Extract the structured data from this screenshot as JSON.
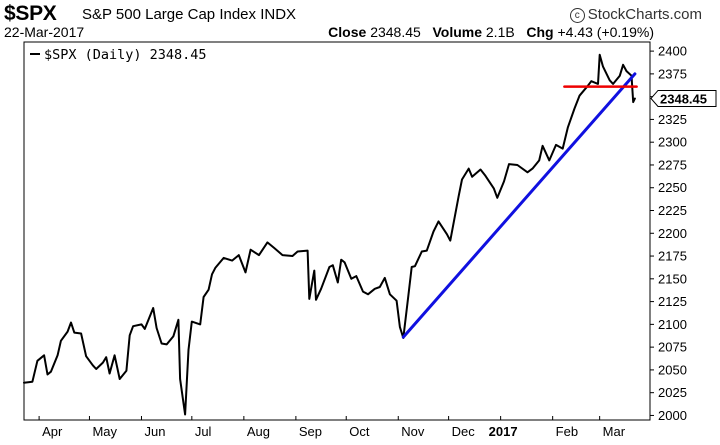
{
  "header": {
    "symbol": "$SPX",
    "description": "S&P 500 Large Cap Index",
    "exchange": "INDX",
    "brand": "StockCharts.com",
    "brand_icon": "copyright-icon",
    "date": "22-Mar-2017",
    "close_label": "Close",
    "close_value": "2348.45",
    "volume_label": "Volume",
    "volume_value": "2.1B",
    "chg_label": "Chg",
    "chg_value": "+4.43 (+0.19%)",
    "chg_arrow_icon": "down-arrow-icon"
  },
  "chart_data": {
    "type": "line",
    "legend": "$SPX (Daily) 2348.45",
    "last_value": "2348.45",
    "ylim": [
      1995,
      2410
    ],
    "y_ticks": [
      "2400",
      "2375",
      "2350",
      "2325",
      "2300",
      "2275",
      "2250",
      "2225",
      "2200",
      "2175",
      "2150",
      "2125",
      "2100",
      "2075",
      "2050",
      "2025",
      "2000"
    ],
    "x_ticks": [
      "Apr",
      "May",
      "Jun",
      "Jul",
      "Aug",
      "Sep",
      "Oct",
      "Nov",
      "Dec",
      "2017",
      "Feb",
      "Mar"
    ],
    "x_range": [
      "2016-03-23",
      "2017-03-31"
    ],
    "series": [
      {
        "color": "#000000",
        "points": [
          [
            "2016-03-23",
            2036
          ],
          [
            "2016-03-28",
            2037
          ],
          [
            "2016-03-31",
            2060
          ],
          [
            "2016-04-04",
            2066
          ],
          [
            "2016-04-06",
            2045
          ],
          [
            "2016-04-08",
            2048
          ],
          [
            "2016-04-12",
            2066
          ],
          [
            "2016-04-14",
            2082
          ],
          [
            "2016-04-18",
            2092
          ],
          [
            "2016-04-20",
            2102
          ],
          [
            "2016-04-22",
            2091
          ],
          [
            "2016-04-26",
            2090
          ],
          [
            "2016-04-29",
            2065
          ],
          [
            "2016-05-03",
            2055
          ],
          [
            "2016-05-05",
            2051
          ],
          [
            "2016-05-09",
            2058
          ],
          [
            "2016-05-11",
            2064
          ],
          [
            "2016-05-13",
            2046
          ],
          [
            "2016-05-16",
            2066
          ],
          [
            "2016-05-19",
            2040
          ],
          [
            "2016-05-23",
            2049
          ],
          [
            "2016-05-25",
            2088
          ],
          [
            "2016-05-27",
            2098
          ],
          [
            "2016-06-01",
            2100
          ],
          [
            "2016-06-03",
            2095
          ],
          [
            "2016-06-08",
            2118
          ],
          [
            "2016-06-10",
            2096
          ],
          [
            "2016-06-13",
            2079
          ],
          [
            "2016-06-16",
            2078
          ],
          [
            "2016-06-20",
            2087
          ],
          [
            "2016-06-23",
            2105
          ],
          [
            "2016-06-24",
            2040
          ],
          [
            "2016-06-27",
            2001
          ],
          [
            "2016-06-29",
            2072
          ],
          [
            "2016-07-01",
            2103
          ],
          [
            "2016-07-06",
            2100
          ],
          [
            "2016-07-08",
            2130
          ],
          [
            "2016-07-11",
            2138
          ],
          [
            "2016-07-13",
            2155
          ],
          [
            "2016-07-15",
            2162
          ],
          [
            "2016-07-20",
            2173
          ],
          [
            "2016-07-25",
            2170
          ],
          [
            "2016-07-29",
            2176
          ],
          [
            "2016-08-02",
            2157
          ],
          [
            "2016-08-05",
            2182
          ],
          [
            "2016-08-10",
            2176
          ],
          [
            "2016-08-15",
            2190
          ],
          [
            "2016-08-19",
            2184
          ],
          [
            "2016-08-24",
            2176
          ],
          [
            "2016-08-30",
            2175
          ],
          [
            "2016-09-02",
            2180
          ],
          [
            "2016-09-08",
            2181
          ],
          [
            "2016-09-09",
            2128
          ],
          [
            "2016-09-12",
            2159
          ],
          [
            "2016-09-13",
            2127
          ],
          [
            "2016-09-16",
            2139
          ],
          [
            "2016-09-21",
            2163
          ],
          [
            "2016-09-23",
            2165
          ],
          [
            "2016-09-26",
            2146
          ],
          [
            "2016-09-28",
            2171
          ],
          [
            "2016-09-30",
            2168
          ],
          [
            "2016-10-04",
            2150
          ],
          [
            "2016-10-07",
            2153
          ],
          [
            "2016-10-11",
            2136
          ],
          [
            "2016-10-14",
            2133
          ],
          [
            "2016-10-18",
            2139
          ],
          [
            "2016-10-21",
            2141
          ],
          [
            "2016-10-24",
            2151
          ],
          [
            "2016-10-27",
            2133
          ],
          [
            "2016-10-31",
            2126
          ],
          [
            "2016-11-02",
            2097
          ],
          [
            "2016-11-04",
            2085
          ],
          [
            "2016-11-07",
            2131
          ],
          [
            "2016-11-09",
            2163
          ],
          [
            "2016-11-11",
            2164
          ],
          [
            "2016-11-15",
            2180
          ],
          [
            "2016-11-18",
            2181
          ],
          [
            "2016-11-22",
            2202
          ],
          [
            "2016-11-25",
            2213
          ],
          [
            "2016-11-30",
            2199
          ],
          [
            "2016-12-02",
            2192
          ],
          [
            "2016-12-07",
            2241
          ],
          [
            "2016-12-09",
            2259
          ],
          [
            "2016-12-13",
            2271
          ],
          [
            "2016-12-15",
            2262
          ],
          [
            "2016-12-20",
            2270
          ],
          [
            "2016-12-23",
            2263
          ],
          [
            "2016-12-28",
            2249
          ],
          [
            "2016-12-30",
            2239
          ],
          [
            "2017-01-03",
            2257
          ],
          [
            "2017-01-06",
            2276
          ],
          [
            "2017-01-11",
            2275
          ],
          [
            "2017-01-17",
            2267
          ],
          [
            "2017-01-20",
            2271
          ],
          [
            "2017-01-24",
            2280
          ],
          [
            "2017-01-26",
            2296
          ],
          [
            "2017-01-30",
            2280
          ],
          [
            "2017-02-03",
            2297
          ],
          [
            "2017-02-07",
            2293
          ],
          [
            "2017-02-10",
            2316
          ],
          [
            "2017-02-14",
            2337
          ],
          [
            "2017-02-17",
            2351
          ],
          [
            "2017-02-22",
            2362
          ],
          [
            "2017-02-24",
            2367
          ],
          [
            "2017-02-28",
            2364
          ],
          [
            "2017-03-01",
            2396
          ],
          [
            "2017-03-03",
            2383
          ],
          [
            "2017-03-07",
            2368
          ],
          [
            "2017-03-09",
            2364
          ],
          [
            "2017-03-13",
            2373
          ],
          [
            "2017-03-15",
            2385
          ],
          [
            "2017-03-17",
            2378
          ],
          [
            "2017-03-20",
            2373
          ],
          [
            "2017-03-21",
            2344
          ],
          [
            "2017-03-22",
            2348
          ]
        ]
      },
      {
        "color": "#1010e0",
        "points": [
          [
            "2016-11-04",
            2086
          ],
          [
            "2017-03-22",
            2375
          ]
        ]
      },
      {
        "color": "#ee0000",
        "points": [
          [
            "2017-02-08",
            2361
          ],
          [
            "2017-03-23",
            2361
          ]
        ]
      }
    ]
  }
}
